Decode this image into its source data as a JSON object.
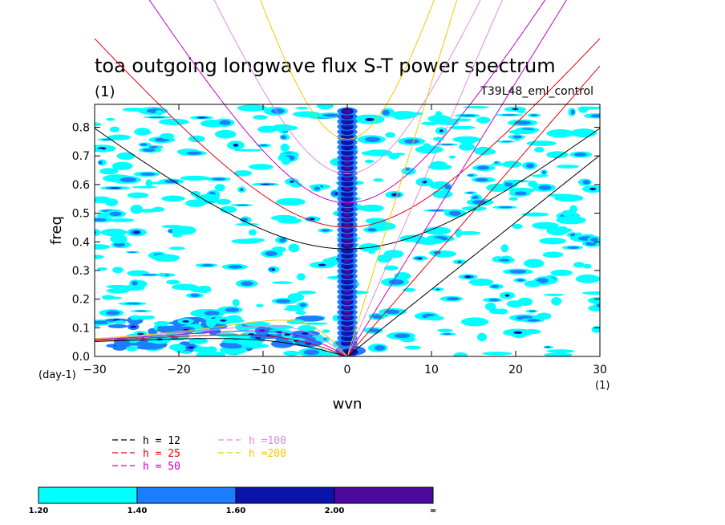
{
  "chart_data": {
    "type": "heatmap",
    "title": "toa outgoing longwave flux S-T power spectrum",
    "subtitle": "(1)",
    "experiment": "T39L48_eml_control",
    "xlabel": "wvn",
    "ylabel": "freq",
    "x_unit_label": "(1)",
    "y_unit_label": "(day-1)",
    "xlim": [
      -30,
      30
    ],
    "ylim": [
      0.0,
      0.88
    ],
    "x_ticks": [
      -30,
      -20,
      -10,
      0,
      10,
      20,
      30
    ],
    "x_tick_labels": [
      "−30",
      "−20",
      "−10",
      "0",
      "10",
      "20",
      "30"
    ],
    "y_ticks": [
      0.0,
      0.1,
      0.2,
      0.3,
      0.4,
      0.5,
      0.6,
      0.7,
      0.8
    ],
    "y_tick_labels": [
      "0.0",
      "0.1",
      "0.2",
      "0.3",
      "0.4",
      "0.5",
      "0.6",
      "0.7",
      "0.8"
    ],
    "grid": false,
    "contour_levels": [
      1.2,
      1.4,
      1.6,
      2.0
    ],
    "colorbar": {
      "labels": [
        "1.20",
        "1.40",
        "1.60",
        "2.00",
        "∞"
      ],
      "colors": [
        "#00ffff",
        "#1e7dff",
        "#0a14aa",
        "#4b0a9b"
      ]
    },
    "dispersion_curves": [
      {
        "label": "h = 12",
        "equivalent_depth": 12,
        "color": "#000000"
      },
      {
        "label": "h = 25",
        "equivalent_depth": 25,
        "color": "#e6000a"
      },
      {
        "label": "h = 50",
        "equivalent_depth": 50,
        "color": "#c800c8"
      },
      {
        "label": "h =100",
        "equivalent_depth": 100,
        "color": "#dc8cdc"
      },
      {
        "label": "h =200",
        "equivalent_depth": 200,
        "color": "#f0c800"
      }
    ],
    "notable_features": [
      {
        "wvn": 0,
        "freq_range": [
          0.0,
          0.88
        ],
        "note": "strong column of power at wavenumber 0"
      },
      {
        "wvn": -10,
        "freq_range": [
          0.02,
          0.12
        ],
        "note": "westward low-frequency power"
      }
    ]
  }
}
